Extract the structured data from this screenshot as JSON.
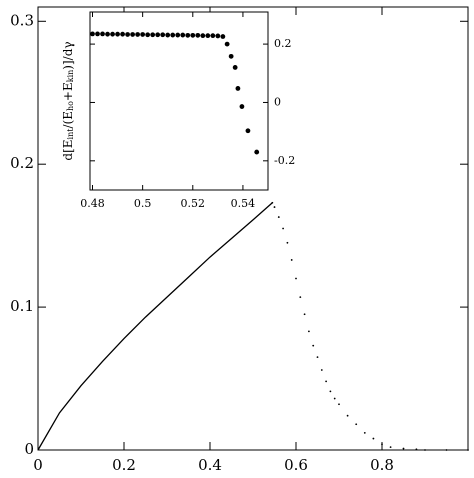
{
  "chart_data": [
    {
      "type": "line",
      "xlim": [
        0,
        1.0
      ],
      "ylim": [
        0,
        0.31
      ],
      "xticks": [
        0,
        0.2,
        0.4,
        0.6,
        0.8
      ],
      "yticks": [
        0,
        0.1,
        0.2,
        0.3
      ],
      "series": [
        {
          "style": "line",
          "color": "#000000",
          "x": [
            0,
            0.05,
            0.1,
            0.15,
            0.2,
            0.25,
            0.3,
            0.35,
            0.4,
            0.45,
            0.5,
            0.545
          ],
          "values": [
            0,
            0.026,
            0.045,
            0.062,
            0.078,
            0.093,
            0.107,
            0.121,
            0.135,
            0.148,
            0.161,
            0.173
          ]
        },
        {
          "style": "dots",
          "color": "#000000",
          "x": [
            0.545,
            0.55,
            0.56,
            0.57,
            0.58,
            0.59,
            0.6,
            0.61,
            0.62,
            0.63,
            0.64,
            0.65,
            0.66,
            0.67,
            0.68,
            0.69,
            0.7,
            0.72,
            0.74,
            0.76,
            0.78,
            0.8,
            0.82,
            0.85,
            0.88,
            0.9,
            0.95,
            1.0
          ],
          "values": [
            0.173,
            0.17,
            0.163,
            0.155,
            0.145,
            0.133,
            0.12,
            0.107,
            0.095,
            0.083,
            0.073,
            0.065,
            0.056,
            0.048,
            0.041,
            0.036,
            0.032,
            0.024,
            0.018,
            0.012,
            0.008,
            0.004,
            0.002,
            0.001,
            0.0005,
            0,
            0,
            0
          ]
        }
      ]
    },
    {
      "type": "scatter",
      "ylabel": [
        "d[E",
        "int",
        "/(E",
        "ho",
        "+E",
        "kin",
        ")]/dγ"
      ],
      "xlim": [
        0.479,
        0.55
      ],
      "ylim": [
        -0.3,
        0.31
      ],
      "xticks": [
        0.48,
        0.5,
        0.52,
        0.54
      ],
      "yticks": [
        0.2,
        0,
        -0.2
      ],
      "color": "#000000",
      "x": [
        0.48,
        0.482,
        0.484,
        0.486,
        0.488,
        0.49,
        0.492,
        0.494,
        0.496,
        0.498,
        0.5,
        0.502,
        0.504,
        0.506,
        0.508,
        0.51,
        0.512,
        0.514,
        0.516,
        0.518,
        0.52,
        0.522,
        0.524,
        0.526,
        0.528,
        0.53,
        0.532,
        0.5337,
        0.5353,
        0.5369,
        0.538,
        0.5396,
        0.542,
        0.5455
      ],
      "values": [
        0.235,
        0.235,
        0.235,
        0.234,
        0.234,
        0.234,
        0.234,
        0.233,
        0.233,
        0.233,
        0.233,
        0.232,
        0.232,
        0.232,
        0.232,
        0.231,
        0.231,
        0.231,
        0.231,
        0.23,
        0.23,
        0.23,
        0.229,
        0.229,
        0.229,
        0.228,
        0.226,
        0.2,
        0.158,
        0.12,
        0.048,
        -0.014,
        -0.097,
        -0.17
      ]
    }
  ]
}
